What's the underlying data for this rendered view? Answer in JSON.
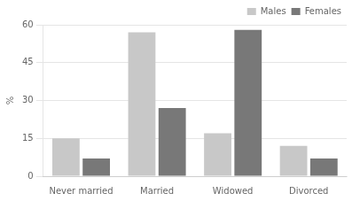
{
  "chart_data": {
    "type": "bar",
    "categories": [
      "Never married",
      "Married",
      "Widowed",
      "Divorced"
    ],
    "series": [
      {
        "name": "Males",
        "color": "#c8c8c8",
        "values": [
          15,
          57,
          17,
          12
        ]
      },
      {
        "name": "Females",
        "color": "#787878",
        "values": [
          7,
          27,
          58,
          7
        ]
      }
    ],
    "ylabel": "%",
    "ylim": [
      0,
      60
    ],
    "yticks": [
      0,
      15,
      30,
      45,
      60
    ],
    "grid": true,
    "legend": "upper right"
  }
}
